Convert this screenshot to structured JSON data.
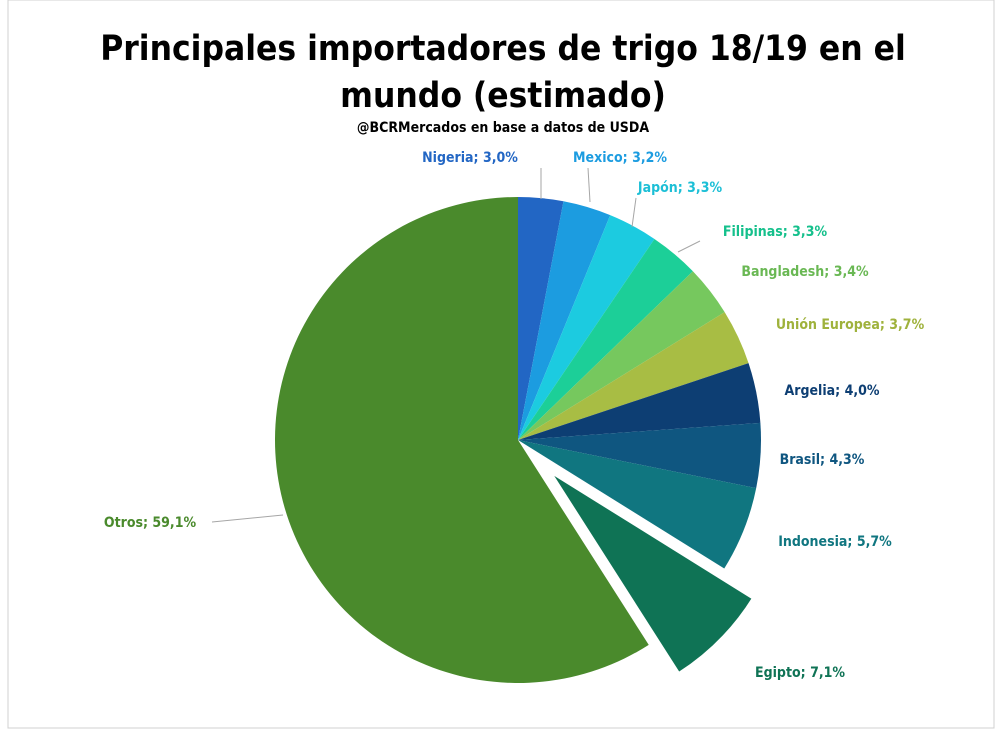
{
  "chart_data": {
    "type": "pie",
    "title": "Principales importadores de trigo 18/19 en el mundo (estimado)",
    "subtitle": "@BCRMercados en base a datos de USDA",
    "categories": [
      "Nigeria",
      "Mexico",
      "Japón",
      "Filipinas",
      "Bangladesh",
      "Unión Europea",
      "Argelia",
      "Brasil",
      "Indonesia",
      "Egipto",
      "Otros"
    ],
    "values": [
      3.0,
      3.2,
      3.3,
      3.3,
      3.4,
      3.7,
      4.0,
      4.3,
      5.7,
      7.1,
      59.1
    ],
    "value_labels": [
      "3,0%",
      "3,2%",
      "3,3%",
      "3,3%",
      "3,4%",
      "3,7%",
      "4,0%",
      "4,3%",
      "5,7%",
      "7,1%",
      "59,1%"
    ],
    "label_separator": "; ",
    "colors": [
      "#2266c4",
      "#1c9ce0",
      "#1ccbe0",
      "#1ccf98",
      "#76c85e",
      "#a8bd44",
      "#0d3e73",
      "#0f5680",
      "#107680",
      "#0f7355",
      "#4a8a2c"
    ],
    "exploded": "Egipto"
  }
}
